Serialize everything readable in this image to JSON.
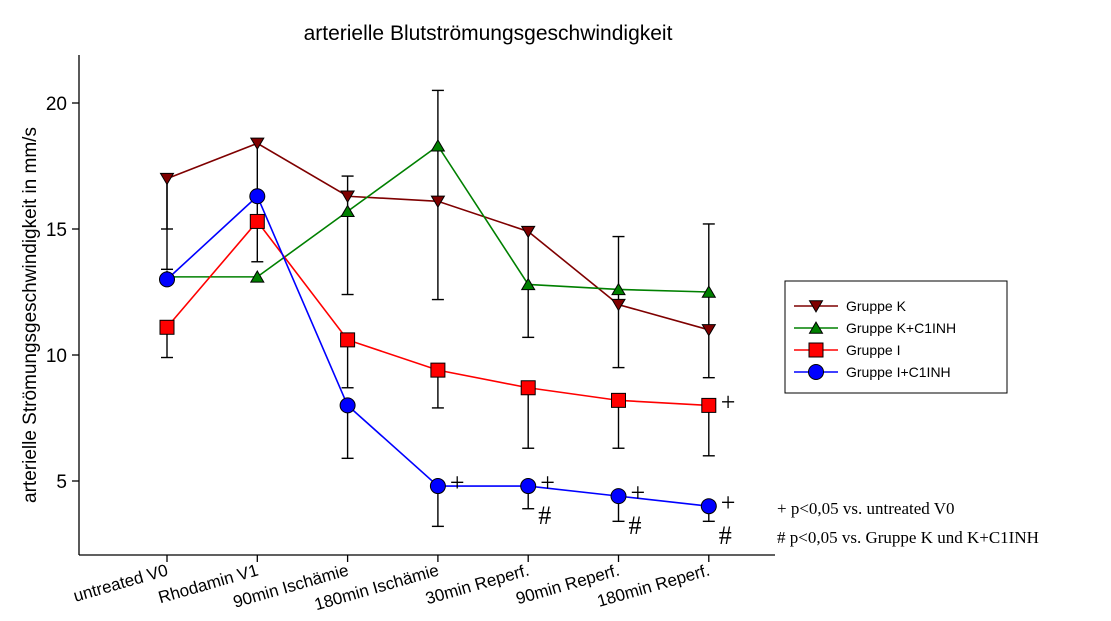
{
  "chart_data": {
    "type": "line",
    "title": "arterielle Blutströmungsgeschwindigkeit",
    "ylabel": "arterielle Strömungsgeschwindigkeit in mm/s",
    "xlabel": "",
    "ylim": [
      2.5,
      22
    ],
    "yticks": [
      5,
      10,
      15,
      20
    ],
    "categories": [
      "untreated V0",
      "Rhodamin V1",
      "90min Ischämie",
      "180min Ischämie",
      "30min Reperf.",
      "90min Reperf.",
      "180min Reperf."
    ],
    "legend_position": "right",
    "series": [
      {
        "name": "Gruppe K",
        "color": "#7f0000",
        "marker": "triangle-down",
        "values": [
          17.0,
          18.4,
          16.3,
          16.1,
          14.9,
          12.0,
          11.0
        ],
        "err_lower": [
          13.4,
          15.3,
          12.4,
          12.2,
          10.7,
          9.5,
          9.1
        ],
        "err_upper": [
          15.0,
          null,
          17.1,
          20.5,
          null,
          14.7,
          15.2
        ]
      },
      {
        "name": "Gruppe K+C1INH",
        "color": "#008000",
        "marker": "triangle-up",
        "values": [
          13.1,
          13.1,
          15.7,
          18.3,
          12.8,
          12.6,
          12.5
        ],
        "err_lower": [
          null,
          null,
          null,
          null,
          null,
          null,
          null
        ],
        "err_upper": [
          null,
          null,
          null,
          null,
          null,
          null,
          null
        ]
      },
      {
        "name": "Gruppe I",
        "color": "#ff0000",
        "marker": "square",
        "values": [
          11.1,
          15.3,
          10.6,
          9.4,
          8.7,
          8.2,
          8.0
        ],
        "err_lower": [
          9.9,
          13.7,
          8.7,
          7.9,
          6.3,
          6.3,
          6.0
        ],
        "err_upper": [
          null,
          null,
          null,
          null,
          null,
          null,
          null
        ]
      },
      {
        "name": "Gruppe I+C1INH",
        "color": "#0000ff",
        "marker": "circle",
        "values": [
          13.0,
          16.3,
          8.0,
          4.8,
          4.8,
          4.4,
          4.0
        ],
        "err_lower": [
          null,
          null,
          5.9,
          3.2,
          3.9,
          3.4,
          3.4
        ],
        "err_upper": [
          null,
          null,
          null,
          null,
          null,
          null,
          null
        ]
      }
    ],
    "annotations": [
      {
        "text": "+",
        "category": "180min Reperf.",
        "value": 8.0,
        "series": "Gruppe I"
      },
      {
        "text": "+",
        "category": "180min Ischämie",
        "value": 4.8,
        "series": "Gruppe I+C1INH"
      },
      {
        "text": "+",
        "category": "30min Reperf.",
        "value": 4.8,
        "series": "Gruppe I+C1INH"
      },
      {
        "text": "#",
        "category": "30min Reperf.",
        "value": 3.7,
        "series": "Gruppe I+C1INH"
      },
      {
        "text": "+",
        "category": "90min Reperf.",
        "value": 4.4,
        "series": "Gruppe I+C1INH"
      },
      {
        "text": "#",
        "category": "90min Reperf.",
        "value": 3.3,
        "series": "Gruppe I+C1INH"
      },
      {
        "text": "+",
        "category": "180min Reperf.",
        "value": 4.0,
        "series": "Gruppe I+C1INH"
      },
      {
        "text": "#",
        "category": "180min Reperf.",
        "value": 2.9,
        "series": "Gruppe I+C1INH"
      }
    ],
    "notes": [
      "+ p<0,05 vs. untreated V0",
      "# p<0,05 vs. Gruppe K und K+C1INH"
    ]
  }
}
